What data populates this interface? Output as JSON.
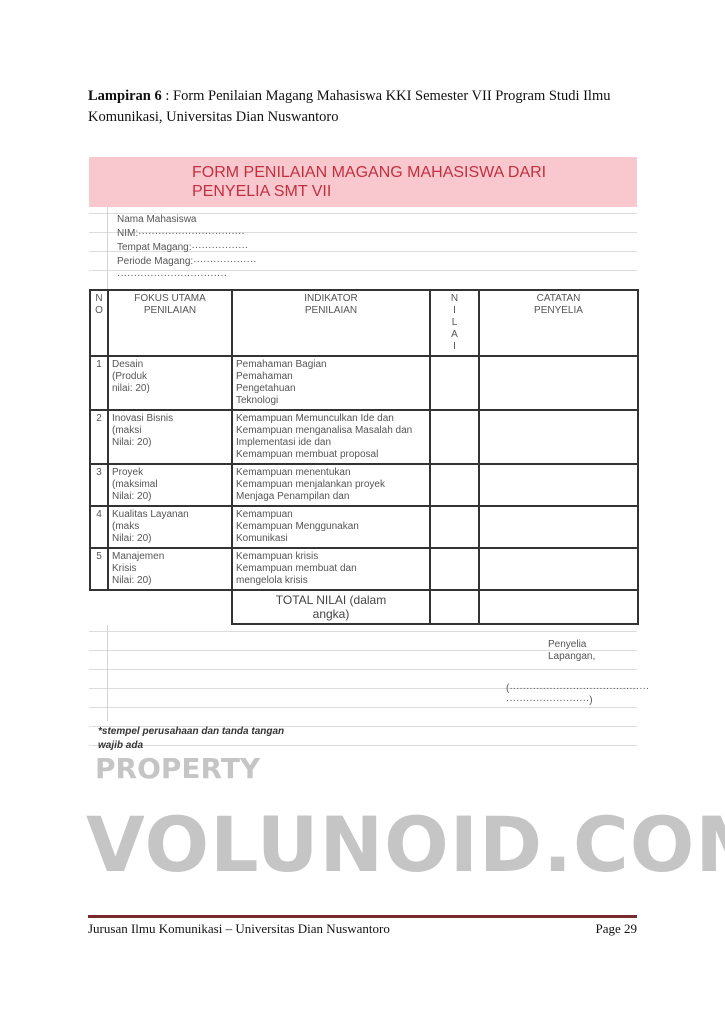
{
  "caption": {
    "label": "Lampiran 6",
    "separator": " : ",
    "text": " Form Penilaian Magang Mahasiswa KKI Semester VII Program Studi Ilmu Komunikasi, Universitas Dian Nuswantoro"
  },
  "form": {
    "title_line1": "FORM PENILAIAN MAGANG MAHASISWA DARI",
    "title_line2": "PENYELIA SMT VII",
    "fields": [
      "Nama Mahasiswa",
      "NIM:································",
      "Tempat Magang:·················",
      "Periode Magang:···················",
      "·································"
    ],
    "headers": {
      "no_1": "N",
      "no_2": "O",
      "fokus_1": "FOKUS UTAMA",
      "fokus_2": "PENILAIAN",
      "indikator": "INDIKATOR",
      "penilaian": "PENILAIAN",
      "nilai": [
        "N",
        "I",
        "L",
        "A",
        "I"
      ],
      "catatan_1": "CATATAN",
      "catatan_2": "PENYELIA"
    },
    "rows": [
      {
        "no": "1",
        "fokus": [
          "Desain",
          "(Produk",
          "nilai: 20)"
        ],
        "indikator": [
          "Pemahaman Bagian",
          "Pemahaman",
          "Pengetahuan",
          "Teknologi"
        ]
      },
      {
        "no": "2",
        "fokus": [
          "Inovasi Bisnis",
          "(maksi",
          "Nilai: 20)"
        ],
        "indikator": [
          "Kemampuan Memunculkan Ide dan",
          "Kemampuan menganalisa Masalah dan",
          "Implementasi ide dan",
          "Kemampuan membuat proposal"
        ]
      },
      {
        "no": "3",
        "fokus": [
          "Proyek",
          "(maksimal",
          "Nilai: 20)"
        ],
        "indikator": [
          "Kemampuan menentukan",
          "Kemampuan menjalankan proyek",
          "Menjaga Penampilan dan"
        ]
      },
      {
        "no": "4",
        "fokus": [
          "Kualitas Layanan",
          "(maks",
          "Nilai: 20)"
        ],
        "indikator": [
          "Kemampuan",
          "Kemampuan Menggunakan",
          "Komunikasi"
        ]
      },
      {
        "no": "5",
        "fokus": [
          "Manajemen",
          "Krisis",
          "Nilai: 20)"
        ],
        "indikator": [
          "Kemampuan krisis",
          "Kemampuan membuat dan",
          "mengelola krisis"
        ]
      }
    ],
    "total_1": "TOTAL NILAI (dalam",
    "total_2": "angka)",
    "signer_1": "Penyelia",
    "signer_2": "Lapangan,",
    "sign_line_1": "(··········································",
    "sign_line_2": "·························)",
    "note_1": "*stempel perusahaan dan tanda tangan",
    "note_2": "wajib ada",
    "title_color": "#c0303f",
    "band_color": "#f9c8cf"
  },
  "footer": {
    "left": "Jurusan Ilmu Komunikasi – Universitas Dian Nuswantoro",
    "right": "Page 29",
    "rule_color": "#7a2a2a"
  },
  "watermark": {
    "line1": "PROPERTY",
    "line2": "VOLUNOID.COM"
  }
}
